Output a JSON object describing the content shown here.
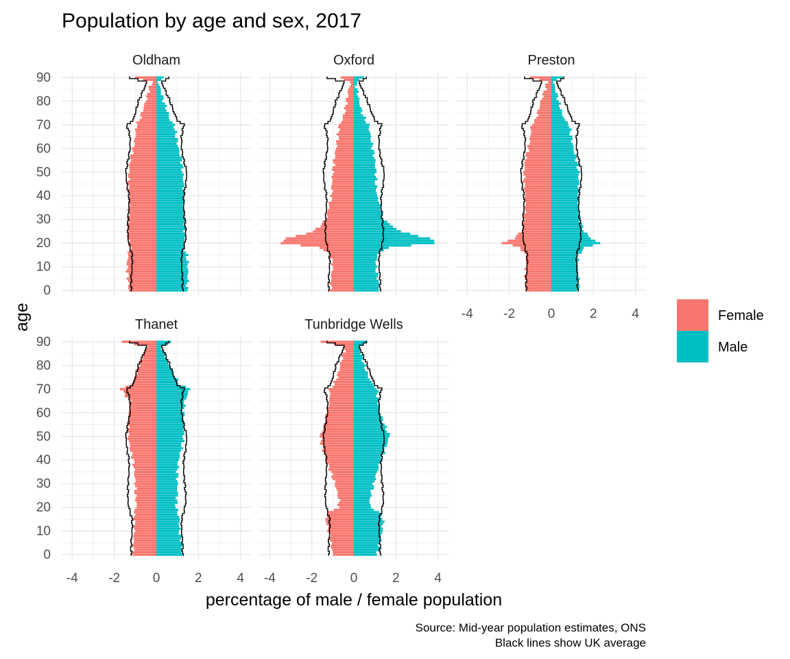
{
  "chart_data": {
    "type": "bar",
    "subtype": "population-pyramid",
    "title": "Population by age and sex, 2017",
    "xlabel": "percentage of male / female population",
    "ylabel": "age",
    "caption": [
      "Source: Mid-year population estimates, ONS",
      "Black lines show UK average"
    ],
    "xlim": [
      -4.5,
      4.5
    ],
    "ylim": [
      -2,
      92
    ],
    "x_ticks": [
      -4,
      -2,
      0,
      2,
      4
    ],
    "x_tick_labels": [
      "-4",
      "-2",
      "0",
      "2",
      "4"
    ],
    "y_ticks": [
      0,
      10,
      20,
      30,
      40,
      50,
      60,
      70,
      80,
      90
    ],
    "y_tick_labels": [
      "0",
      "10",
      "20",
      "30",
      "40",
      "50",
      "60",
      "70",
      "80",
      "90"
    ],
    "grid": true,
    "legend": {
      "position": "right",
      "entries": [
        {
          "label": "Female",
          "color": "#F8766D"
        },
        {
          "label": "Male",
          "color": "#00BFC4"
        }
      ]
    },
    "female_sign": "negative",
    "ages": [
      0,
      5,
      10,
      15,
      18,
      20,
      22,
      25,
      30,
      35,
      40,
      45,
      50,
      55,
      60,
      65,
      70,
      72,
      75,
      80,
      85,
      88,
      90
    ],
    "reference_line": {
      "name": "UK average",
      "color": "#000000",
      "female": [
        1.2,
        1.2,
        1.15,
        1.15,
        1.25,
        1.3,
        1.35,
        1.35,
        1.35,
        1.3,
        1.3,
        1.4,
        1.45,
        1.35,
        1.25,
        1.25,
        1.4,
        1.1,
        1.0,
        0.85,
        0.6,
        0.45,
        1.3
      ],
      "male": [
        1.25,
        1.25,
        1.2,
        1.2,
        1.3,
        1.35,
        1.4,
        1.4,
        1.35,
        1.3,
        1.3,
        1.4,
        1.45,
        1.3,
        1.2,
        1.2,
        1.3,
        1.0,
        0.85,
        0.65,
        0.4,
        0.25,
        0.6
      ]
    },
    "panels": [
      {
        "name": "Oldham",
        "female": [
          1.3,
          1.35,
          1.4,
          1.35,
          1.25,
          1.3,
          1.35,
          1.35,
          1.35,
          1.3,
          1.3,
          1.35,
          1.3,
          1.25,
          1.1,
          1.0,
          0.95,
          0.8,
          0.7,
          0.5,
          0.35,
          0.2,
          1.0
        ],
        "male": [
          1.45,
          1.5,
          1.5,
          1.45,
          1.3,
          1.35,
          1.35,
          1.35,
          1.35,
          1.3,
          1.3,
          1.3,
          1.25,
          1.2,
          1.05,
          0.95,
          0.85,
          0.65,
          0.55,
          0.35,
          0.2,
          0.1,
          0.3
        ]
      },
      {
        "name": "Oxford",
        "female": [
          1.1,
          1.1,
          1.0,
          1.1,
          1.6,
          3.5,
          3.2,
          1.9,
          1.3,
          1.2,
          1.05,
          1.05,
          1.0,
          0.95,
          0.85,
          0.75,
          0.7,
          0.55,
          0.45,
          0.35,
          0.25,
          0.15,
          0.7
        ],
        "male": [
          1.2,
          1.15,
          1.05,
          1.1,
          1.6,
          3.9,
          3.6,
          2.2,
          1.4,
          1.3,
          1.1,
          1.05,
          1.05,
          1.0,
          0.9,
          0.8,
          0.7,
          0.55,
          0.4,
          0.25,
          0.15,
          0.1,
          0.5
        ]
      },
      {
        "name": "Preston",
        "female": [
          1.2,
          1.25,
          1.2,
          1.2,
          1.5,
          2.3,
          1.8,
          1.4,
          1.3,
          1.25,
          1.25,
          1.3,
          1.3,
          1.25,
          1.1,
          1.0,
          0.95,
          0.75,
          0.65,
          0.5,
          0.3,
          0.2,
          1.0
        ],
        "male": [
          1.3,
          1.3,
          1.25,
          1.25,
          1.6,
          2.3,
          1.9,
          1.55,
          1.35,
          1.3,
          1.3,
          1.3,
          1.3,
          1.2,
          1.05,
          0.95,
          0.85,
          0.65,
          0.5,
          0.35,
          0.2,
          0.1,
          0.5
        ]
      },
      {
        "name": "Thanet",
        "female": [
          1.1,
          1.1,
          1.05,
          1.05,
          1.05,
          0.95,
          0.95,
          1.0,
          1.0,
          1.05,
          1.1,
          1.25,
          1.35,
          1.35,
          1.3,
          1.25,
          1.7,
          1.2,
          1.0,
          0.85,
          0.6,
          0.45,
          1.6
        ],
        "male": [
          1.2,
          1.2,
          1.1,
          1.1,
          1.0,
          0.95,
          0.95,
          1.0,
          1.0,
          1.0,
          1.05,
          1.2,
          1.3,
          1.3,
          1.3,
          1.35,
          1.6,
          1.1,
          0.9,
          0.6,
          0.4,
          0.25,
          0.75
        ]
      },
      {
        "name": "Tunbridge Wells",
        "female": [
          1.0,
          1.1,
          1.2,
          1.35,
          1.2,
          0.75,
          0.7,
          0.75,
          0.9,
          1.1,
          1.3,
          1.5,
          1.6,
          1.4,
          1.3,
          1.15,
          1.15,
          0.95,
          0.8,
          0.65,
          0.5,
          0.4,
          1.6
        ],
        "male": [
          1.1,
          1.25,
          1.35,
          1.4,
          1.2,
          0.8,
          0.75,
          0.8,
          0.95,
          1.1,
          1.3,
          1.5,
          1.7,
          1.45,
          1.25,
          1.15,
          1.1,
          0.9,
          0.7,
          0.5,
          0.35,
          0.2,
          0.7
        ]
      }
    ]
  }
}
